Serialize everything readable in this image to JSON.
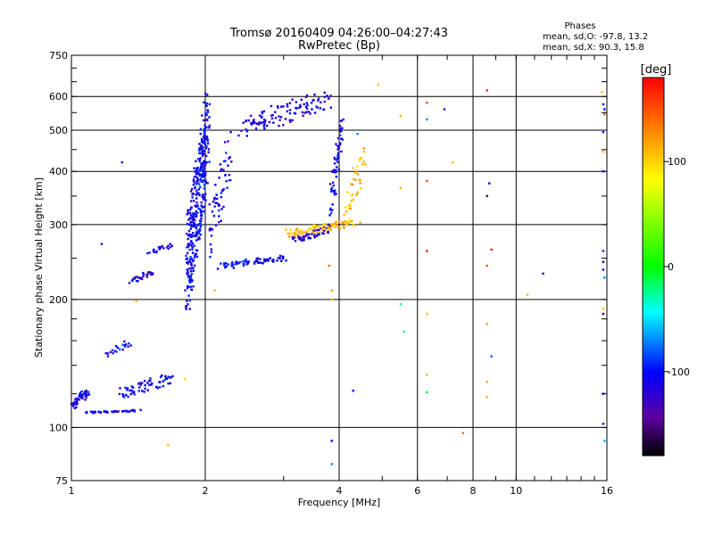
{
  "chart_data": {
    "type": "scatter",
    "title": "Tromsø 20160409 04:26:00–04:27:43",
    "subtitle": "RwPretec (Bp)",
    "stats": {
      "heading": "Phases",
      "line1": "mean, sd,O: -97.8, 13.2",
      "line2": "mean, sd,X:  90.3, 15.8"
    },
    "xlabel": "Frequency [MHz]",
    "ylabel": "Stationary phase Virtual Height [km]",
    "x_scale": "log",
    "y_scale": "log",
    "xlim": [
      1,
      16
    ],
    "ylim": [
      75,
      750
    ],
    "x_ticks": [
      1,
      2,
      4,
      6,
      8,
      10,
      16
    ],
    "x_tick_labels": [
      "1",
      "2",
      "4",
      "6",
      "8",
      "10",
      "16"
    ],
    "y_ticks": [
      75,
      100,
      200,
      300,
      400,
      500,
      600,
      750
    ],
    "y_tick_labels": [
      "75",
      "100",
      "200",
      "300",
      "400",
      "500",
      "600",
      "750"
    ],
    "grid": true,
    "colorbar": {
      "label": "[deg]",
      "range": [
        -180,
        180
      ],
      "ticks": [
        100,
        0,
        -100
      ],
      "tick_labels": [
        "100",
        "0",
        "-100"
      ],
      "colors": [
        "#ff0000",
        "#ffff00",
        "#00ff00",
        "#00ffff",
        "#0000ff",
        "#000000"
      ]
    },
    "series": [
      {
        "phase": -110,
        "x_range": [
          1.0,
          1.1
        ],
        "y_range": [
          110,
          125
        ],
        "count": 40
      },
      {
        "phase": -110,
        "x_range": [
          1.06,
          1.45
        ],
        "y_range": [
          108,
          110
        ],
        "count": 45
      },
      {
        "phase": -105,
        "x_range": [
          1.25,
          1.75
        ],
        "y_range": [
          116,
          135
        ],
        "count": 60
      },
      {
        "phase": -100,
        "x_range": [
          1.19,
          1.38
        ],
        "y_range": [
          146,
          162
        ],
        "count": 20
      },
      {
        "phase": -110,
        "x_range": [
          1.35,
          1.55
        ],
        "y_range": [
          218,
          236
        ],
        "count": 30
      },
      {
        "phase": -110,
        "x_range": [
          1.48,
          1.7
        ],
        "y_range": [
          254,
          272
        ],
        "count": 20
      },
      {
        "phase": -105,
        "x_range": [
          1.8,
          2.05
        ],
        "y_range": [
          180,
          640
        ],
        "count": 380
      },
      {
        "phase": -105,
        "x_range": [
          2.02,
          2.3
        ],
        "y_range": [
          240,
          520
        ],
        "count": 60
      },
      {
        "phase": -110,
        "x_range": [
          2.3,
          3.9
        ],
        "y_range": [
          475,
          630
        ],
        "count": 110
      },
      {
        "phase": -105,
        "x_range": [
          2.1,
          3.1
        ],
        "y_range": [
          235,
          255
        ],
        "count": 70
      },
      {
        "phase": -120,
        "x_range": [
          3.1,
          3.9
        ],
        "y_range": [
          270,
          300
        ],
        "count": 60
      },
      {
        "phase": -105,
        "x_range": [
          3.8,
          4.1
        ],
        "y_range": [
          300,
          560
        ],
        "count": 60
      },
      {
        "phase": 110,
        "x_range": [
          3.0,
          4.5
        ],
        "y_range": [
          280,
          310
        ],
        "count": 80
      },
      {
        "phase": 110,
        "x_range": [
          4.1,
          4.6
        ],
        "y_range": [
          300,
          470
        ],
        "count": 40
      }
    ],
    "scattered_points": [
      {
        "x": 1.17,
        "y": 270,
        "phase": -110
      },
      {
        "x": 1.4,
        "y": 198,
        "phase": 110
      },
      {
        "x": 1.3,
        "y": 420,
        "phase": -110
      },
      {
        "x": 1.65,
        "y": 91,
        "phase": 110
      },
      {
        "x": 1.8,
        "y": 130,
        "phase": 100
      },
      {
        "x": 2.1,
        "y": 210,
        "phase": 110
      },
      {
        "x": 3.85,
        "y": 93,
        "phase": -100
      },
      {
        "x": 3.85,
        "y": 82,
        "phase": -70
      },
      {
        "x": 3.8,
        "y": 240,
        "phase": 140
      },
      {
        "x": 3.85,
        "y": 210,
        "phase": 120
      },
      {
        "x": 3.85,
        "y": 200,
        "phase": 110
      },
      {
        "x": 4.3,
        "y": 122,
        "phase": -110
      },
      {
        "x": 4.9,
        "y": 640,
        "phase": 110
      },
      {
        "x": 4.4,
        "y": 490,
        "phase": -70
      },
      {
        "x": 5.5,
        "y": 540,
        "phase": 110
      },
      {
        "x": 5.5,
        "y": 365,
        "phase": 110
      },
      {
        "x": 5.5,
        "y": 195,
        "phase": -30
      },
      {
        "x": 5.6,
        "y": 168,
        "phase": -30
      },
      {
        "x": 6.3,
        "y": 580,
        "phase": 150
      },
      {
        "x": 6.3,
        "y": 530,
        "phase": -70
      },
      {
        "x": 6.3,
        "y": 380,
        "phase": 150
      },
      {
        "x": 6.3,
        "y": 260,
        "phase": 170
      },
      {
        "x": 6.3,
        "y": 185,
        "phase": 110
      },
      {
        "x": 6.3,
        "y": 133,
        "phase": 110
      },
      {
        "x": 6.3,
        "y": 121,
        "phase": -10
      },
      {
        "x": 6.9,
        "y": 560,
        "phase": -110
      },
      {
        "x": 7.2,
        "y": 420,
        "phase": 110
      },
      {
        "x": 7.6,
        "y": 97,
        "phase": 140
      },
      {
        "x": 8.6,
        "y": 620,
        "phase": 170
      },
      {
        "x": 8.6,
        "y": 350,
        "phase": -160
      },
      {
        "x": 8.7,
        "y": 375,
        "phase": -110
      },
      {
        "x": 8.6,
        "y": 240,
        "phase": 150
      },
      {
        "x": 8.8,
        "y": 262,
        "phase": 170
      },
      {
        "x": 8.6,
        "y": 175,
        "phase": 120
      },
      {
        "x": 8.8,
        "y": 147,
        "phase": -80
      },
      {
        "x": 8.6,
        "y": 128,
        "phase": 120
      },
      {
        "x": 8.6,
        "y": 118,
        "phase": 110
      },
      {
        "x": 10.6,
        "y": 205,
        "phase": 40
      },
      {
        "x": 11.5,
        "y": 230,
        "phase": -110
      },
      {
        "x": 15.6,
        "y": 615,
        "phase": 110
      },
      {
        "x": 15.7,
        "y": 575,
        "phase": -110
      },
      {
        "x": 15.8,
        "y": 560,
        "phase": -100
      },
      {
        "x": 15.8,
        "y": 545,
        "phase": 150
      },
      {
        "x": 15.7,
        "y": 495,
        "phase": -100
      },
      {
        "x": 15.7,
        "y": 445,
        "phase": 110
      },
      {
        "x": 15.7,
        "y": 400,
        "phase": -110
      },
      {
        "x": 15.7,
        "y": 260,
        "phase": -90
      },
      {
        "x": 15.7,
        "y": 245,
        "phase": -150
      },
      {
        "x": 15.7,
        "y": 235,
        "phase": -110
      },
      {
        "x": 15.8,
        "y": 225,
        "phase": -70
      },
      {
        "x": 15.7,
        "y": 190,
        "phase": 110
      },
      {
        "x": 15.7,
        "y": 185,
        "phase": -160
      },
      {
        "x": 15.7,
        "y": 120,
        "phase": -100
      },
      {
        "x": 15.7,
        "y": 102,
        "phase": -110
      },
      {
        "x": 15.8,
        "y": 93,
        "phase": -60
      }
    ]
  }
}
